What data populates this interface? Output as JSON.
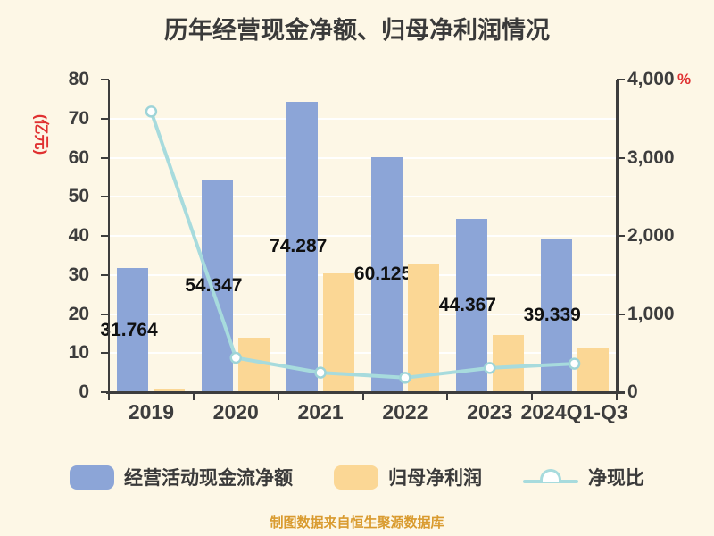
{
  "title": "历年经营现金净额、归母净利润情况",
  "footer": "制图数据来自恒生聚源数据库",
  "axes": {
    "left": {
      "unit": "(亿元)",
      "ticks": [
        "0",
        "10",
        "20",
        "30",
        "40",
        "50",
        "60",
        "70",
        "80"
      ],
      "max": 80
    },
    "right": {
      "unit": "%",
      "ticks": [
        "0",
        "1,000",
        "2,000",
        "3,000",
        "4,000"
      ],
      "max": 4000
    }
  },
  "legend": [
    {
      "label": "经营活动现金流净额",
      "type": "bar",
      "color_key": "bar_blue"
    },
    {
      "label": "归母净利润",
      "type": "bar",
      "color_key": "bar_orange"
    },
    {
      "label": "净现比",
      "type": "line",
      "color_key": "line_cyan"
    }
  ],
  "chart_data": {
    "type": "bar+line combo",
    "title": "历年经营现金净额、归母净利润情况",
    "categories": [
      "2019",
      "2020",
      "2021",
      "2022",
      "2023",
      "2024Q1-Q3"
    ],
    "series": [
      {
        "name": "经营活动现金流净额",
        "type": "bar",
        "axis": "left",
        "values": [
          31.764,
          54.347,
          74.287,
          60.125,
          44.367,
          39.339
        ],
        "labels": [
          "31.764",
          "54.347",
          "74.287",
          "60.125",
          "44.367",
          "39.339"
        ]
      },
      {
        "name": "归母净利润",
        "type": "bar",
        "axis": "left",
        "values": [
          0.9,
          13.9,
          30.4,
          32.7,
          14.6,
          11.4
        ]
      },
      {
        "name": "净现比",
        "type": "line",
        "axis": "right",
        "values": [
          3590,
          440,
          250,
          185,
          310,
          365
        ]
      }
    ],
    "left_ylabel": "(亿元)",
    "right_ylabel": "%",
    "left_ylim": [
      0,
      80
    ],
    "right_ylim": [
      0,
      4000
    ],
    "grid": true,
    "legend_position": "bottom"
  },
  "colors": {
    "background": "#FDF7E6",
    "bar_blue": "#8CA5D7",
    "bar_orange": "#FBD795",
    "line_cyan": "#A7DBDD",
    "marker_ring": "#9ED4D8",
    "marker_fill": "#FFFFFF",
    "grid_white": "#FFFFFF",
    "axis_dark": "#3D3D3D",
    "unit_red": "#E03131",
    "label_black": "#101010",
    "footer_orange": "#D99B2F"
  }
}
